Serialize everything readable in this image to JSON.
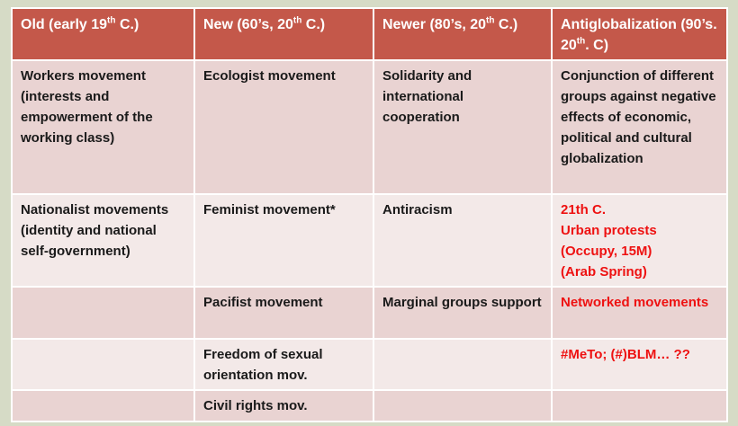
{
  "table": {
    "header": [
      [
        "Old (early 19",
        "th",
        " C.)"
      ],
      [
        "New (60’s, 20",
        "th",
        " C.)"
      ],
      [
        "Newer (80’s, 20",
        "th",
        " C.)"
      ],
      [
        "Antiglobalization (90’s. 20",
        "th",
        ". C)"
      ]
    ],
    "rows": [
      [
        "Workers movement (interests and empowerment of the working class)",
        "Ecologist movement",
        "Solidarity and international cooperation",
        "Conjunction of different groups against negative effects of economic, political and cultural globalization"
      ],
      [
        "Nationalist movements (identity and national self-government)",
        "Feminist movement*",
        "Antiracism",
        "21th C.\nUrban protests\n(Occupy, 15M)\n(Arab Spring)"
      ],
      [
        null,
        "Pacifist movement",
        "Marginal groups support",
        "Networked movements"
      ],
      [
        null,
        "Freedom of sexual orientation mov.",
        null,
        "#MeTo; (#)BLM… ??"
      ],
      [
        null,
        "Civil rights mov.",
        null,
        null
      ]
    ]
  }
}
